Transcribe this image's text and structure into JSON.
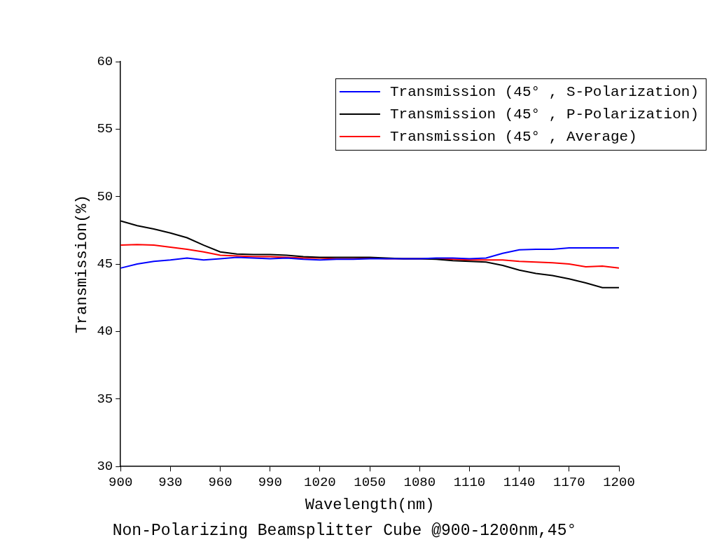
{
  "chart_data": {
    "type": "line",
    "title": "Non-Polarizing Beamsplitter Cube @900-1200nm,45°",
    "x_label": "Wavelength(nm)",
    "y_label": "Transmission(%)",
    "x": [
      900,
      910,
      920,
      930,
      940,
      950,
      960,
      970,
      980,
      990,
      1000,
      1010,
      1020,
      1030,
      1040,
      1050,
      1060,
      1070,
      1080,
      1090,
      1100,
      1110,
      1120,
      1130,
      1140,
      1150,
      1160,
      1170,
      1180,
      1190,
      1200
    ],
    "series": [
      {
        "name": "Transmission (45° , S-Polarization)",
        "color": "#0000ff",
        "values": [
          44.7,
          45.0,
          45.2,
          45.3,
          45.45,
          45.3,
          45.4,
          45.5,
          45.45,
          45.4,
          45.45,
          45.35,
          45.3,
          45.35,
          45.35,
          45.4,
          45.4,
          45.4,
          45.4,
          45.45,
          45.45,
          45.4,
          45.45,
          45.8,
          46.05,
          46.1,
          46.1,
          46.2,
          46.2,
          46.2,
          46.2
        ]
      },
      {
        "name": "Transmission (45° , P-Polarization)",
        "color": "#000000",
        "values": [
          48.2,
          47.85,
          47.6,
          47.3,
          46.95,
          46.4,
          45.9,
          45.75,
          45.7,
          45.7,
          45.65,
          45.55,
          45.5,
          45.5,
          45.5,
          45.5,
          45.45,
          45.4,
          45.4,
          45.35,
          45.25,
          45.2,
          45.15,
          44.9,
          44.55,
          44.3,
          44.15,
          43.9,
          43.6,
          43.25,
          43.25
        ]
      },
      {
        "name": "Transmission (45° , Average)",
        "color": "#ff0000",
        "values": [
          46.4,
          46.45,
          46.4,
          46.25,
          46.1,
          45.9,
          45.65,
          45.6,
          45.55,
          45.55,
          45.5,
          45.45,
          45.45,
          45.4,
          45.4,
          45.45,
          45.4,
          45.4,
          45.4,
          45.4,
          45.35,
          45.3,
          45.3,
          45.3,
          45.2,
          45.15,
          45.1,
          45.0,
          44.8,
          44.85,
          44.7
        ]
      }
    ],
    "xlim": [
      900,
      1200
    ],
    "ylim": [
      30,
      60
    ],
    "xticks": [
      900,
      930,
      960,
      990,
      1020,
      1050,
      1080,
      1110,
      1140,
      1170,
      1200
    ],
    "yticks": [
      30,
      35,
      40,
      45,
      50,
      55,
      60
    ],
    "grid": false,
    "legend": "top-right"
  }
}
